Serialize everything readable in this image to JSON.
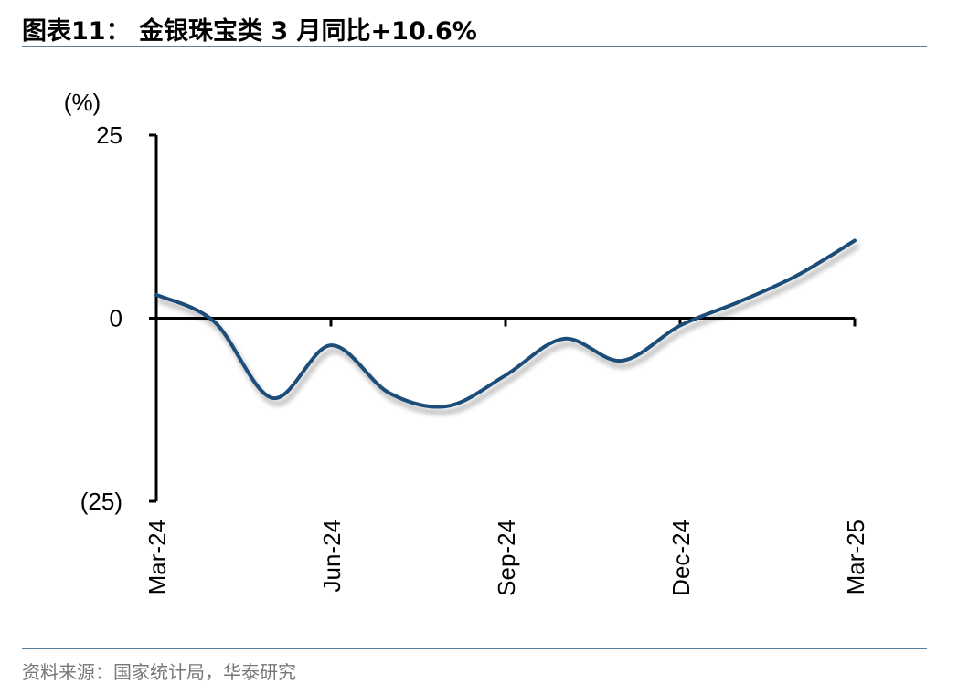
{
  "header": {
    "title": "图表11： 金银珠宝类 3 月同比+10.6%"
  },
  "footer": {
    "source": "资料来源：国家统计局，华泰研究"
  },
  "chart_data": {
    "type": "line",
    "title": "金银珠宝类 3 月同比+10.6%",
    "ylabel": "(%)",
    "xlabel": "",
    "ylim": [
      -25,
      25
    ],
    "y_ticks": [
      25,
      0,
      -25
    ],
    "y_tick_labels": [
      "25",
      "0",
      "(25)"
    ],
    "x_tick_labels": [
      "Mar-24",
      "Jun-24",
      "Sep-24",
      "Dec-24",
      "Mar-25"
    ],
    "categories": [
      "Mar-24",
      "Apr-24",
      "May-24",
      "Jun-24",
      "Jul-24",
      "Aug-24",
      "Sep-24",
      "Oct-24",
      "Nov-24",
      "Dec-24",
      "Jan-25",
      "Feb-25",
      "Mar-25"
    ],
    "series": [
      {
        "values": [
          3.2,
          -0.5,
          -10.9,
          -3.7,
          -10.2,
          -12.0,
          -7.8,
          -2.8,
          -5.8,
          -1.0,
          2.2,
          5.8,
          10.6
        ]
      }
    ],
    "line_color": "#1f4e79",
    "grid": false
  }
}
